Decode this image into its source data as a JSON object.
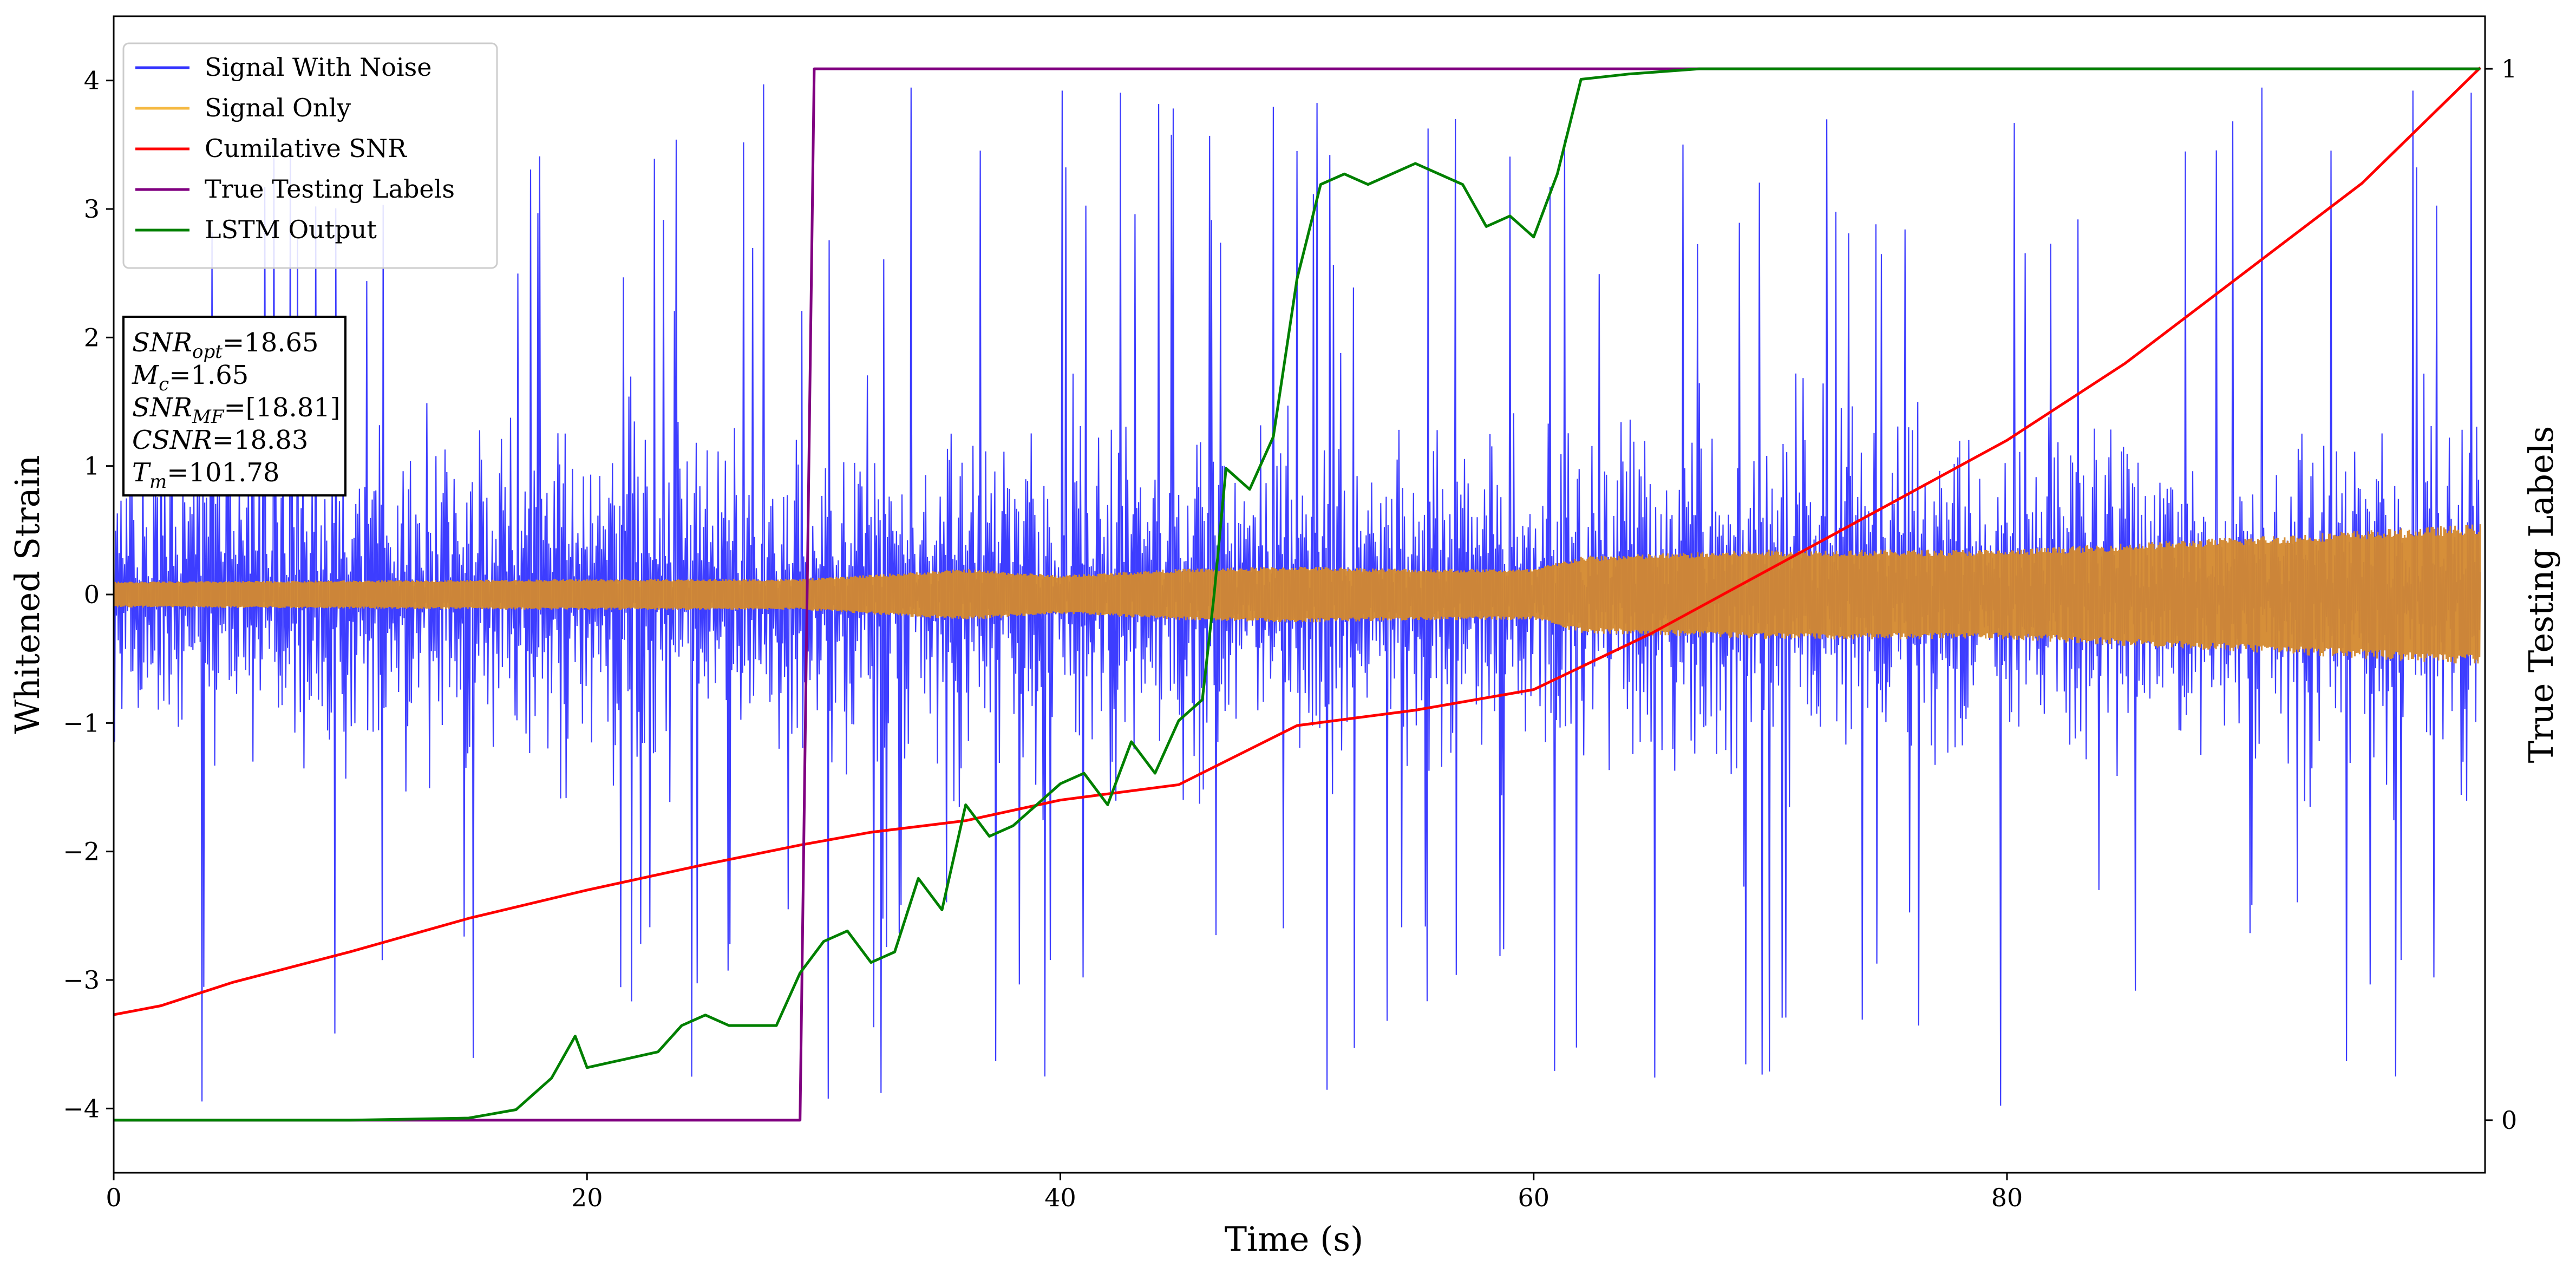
{
  "chart_data": {
    "type": "line",
    "xlabel": "Time (s)",
    "ylabel": "Whitened Strain",
    "y2label": "True Testing Labels",
    "xlim": [
      0,
      100.2
    ],
    "ylim": [
      -4.5,
      4.5
    ],
    "y2lim": [
      -0.05,
      1.05
    ],
    "x_ticks": [
      0,
      20,
      40,
      60,
      80
    ],
    "y_ticks": [
      -4,
      -3,
      -2,
      -1,
      0,
      1,
      2,
      3,
      4
    ],
    "y2_ticks": [
      0,
      1
    ],
    "grid": false,
    "legend_position": "upper-left",
    "series": [
      {
        "name": "Signal With Noise",
        "color": "#3333ff",
        "axis": "left",
        "kind": "noise",
        "typical_range": [
          -2.2,
          2.2
        ],
        "extremes": [
          -4.1,
          4.0
        ]
      },
      {
        "name": "Signal Only",
        "color": "#f5b942",
        "axis": "left",
        "kind": "envelope",
        "x": [
          0,
          10,
          20,
          29,
          36,
          40,
          45,
          50,
          55,
          60,
          62,
          70,
          80,
          90,
          95,
          100
        ],
        "amplitude": [
          0.1,
          0.11,
          0.12,
          0.12,
          0.2,
          0.15,
          0.2,
          0.22,
          0.2,
          0.2,
          0.3,
          0.35,
          0.35,
          0.45,
          0.5,
          0.55
        ]
      },
      {
        "name": "Cumilative SNR",
        "color": "#ff0000",
        "axis": "left",
        "x": [
          0,
          2,
          5,
          10,
          15,
          20,
          25,
          29,
          32,
          36,
          40,
          45,
          50,
          55,
          60,
          65,
          70,
          75,
          80,
          85,
          90,
          95,
          100
        ],
        "y": [
          -3.27,
          -3.2,
          -3.02,
          -2.78,
          -2.52,
          -2.3,
          -2.1,
          -1.95,
          -1.85,
          -1.76,
          -1.6,
          -1.48,
          -1.02,
          -0.9,
          -0.74,
          -0.3,
          0.2,
          0.7,
          1.2,
          1.8,
          2.5,
          3.2,
          4.1
        ]
      },
      {
        "name": "True Testing Labels",
        "color": "#800080",
        "axis": "right",
        "x": [
          0,
          29,
          29.6,
          100
        ],
        "y": [
          0,
          0,
          1,
          1
        ]
      },
      {
        "name": "LSTM Output",
        "color": "#008000",
        "axis": "right",
        "x": [
          0,
          10,
          15,
          17,
          18.5,
          19.5,
          20,
          21,
          23,
          24,
          25,
          26,
          28,
          29,
          30,
          31,
          32,
          33,
          34,
          35,
          36,
          37,
          38,
          39,
          40,
          41,
          42,
          43,
          44,
          45,
          46,
          46.5,
          47,
          47.5,
          48,
          49,
          50,
          51,
          52,
          53,
          54,
          55,
          56,
          57,
          58,
          59,
          60,
          61,
          62,
          64,
          67,
          70,
          80,
          90,
          100
        ],
        "y": [
          0,
          0,
          0.002,
          0.01,
          0.04,
          0.08,
          0.05,
          0.055,
          0.065,
          0.09,
          0.1,
          0.09,
          0.09,
          0.14,
          0.17,
          0.18,
          0.15,
          0.16,
          0.23,
          0.2,
          0.3,
          0.27,
          0.28,
          0.3,
          0.32,
          0.33,
          0.3,
          0.36,
          0.33,
          0.38,
          0.4,
          0.5,
          0.62,
          0.61,
          0.6,
          0.65,
          0.8,
          0.89,
          0.9,
          0.89,
          0.9,
          0.91,
          0.9,
          0.89,
          0.85,
          0.86,
          0.84,
          0.9,
          0.99,
          0.995,
          1,
          1,
          1,
          1,
          1
        ]
      }
    ],
    "info_box": [
      {
        "main": "SNR",
        "sub": "opt",
        "value": "=18.65"
      },
      {
        "main": "M",
        "sub": "c",
        "value": "=1.65"
      },
      {
        "main": "SNR",
        "sub": "MF",
        "value": "=[18.81]"
      },
      {
        "main": "CSNR",
        "sub": "",
        "value": "=18.83"
      },
      {
        "main": "T",
        "sub": "m",
        "value": "=101.78"
      }
    ]
  }
}
